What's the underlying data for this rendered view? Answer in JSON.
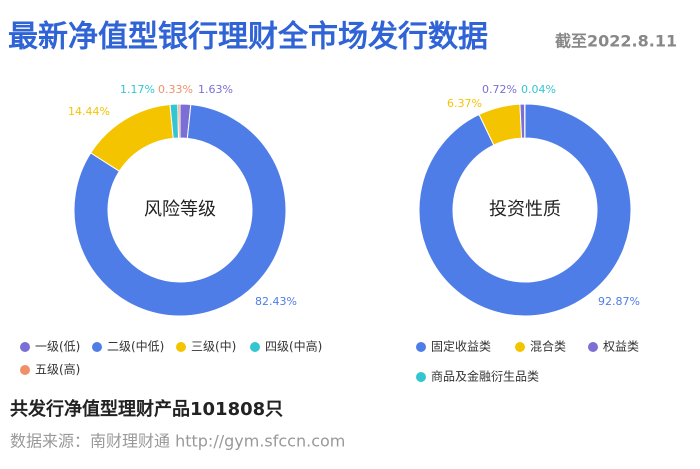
{
  "header": {
    "title": "最新净值型银行理财全市场发行数据",
    "date": "截至2022.8.11"
  },
  "chart_data": [
    {
      "type": "donut",
      "title": "风险等级",
      "categories": [
        "一级(低)",
        "二级(中低)",
        "三级(中)",
        "四级(中高)",
        "五级(高)"
      ],
      "values": [
        1.63,
        82.43,
        14.44,
        1.17,
        0.33
      ],
      "value_labels": [
        "1.63%",
        "82.43%",
        "14.44%",
        "1.17%",
        "0.33%"
      ],
      "colors": [
        "#7b6fd6",
        "#4f7de8",
        "#f5c400",
        "#33c6d0",
        "#f0906a"
      ]
    },
    {
      "type": "donut",
      "title": "投资性质",
      "categories": [
        "固定收益类",
        "混合类",
        "权益类",
        "商品及金融衍生品类"
      ],
      "values": [
        92.87,
        6.37,
        0.72,
        0.04
      ],
      "value_labels": [
        "92.87%",
        "6.37%",
        "0.72%",
        "0.04%"
      ],
      "colors": [
        "#4f7de8",
        "#f5c400",
        "#7b6fd6",
        "#33c6d0"
      ]
    }
  ],
  "footer": {
    "summary": "共发行净值型理财产品101808只",
    "source": "数据来源：南财理财通 http://gym.sfccn.com"
  }
}
